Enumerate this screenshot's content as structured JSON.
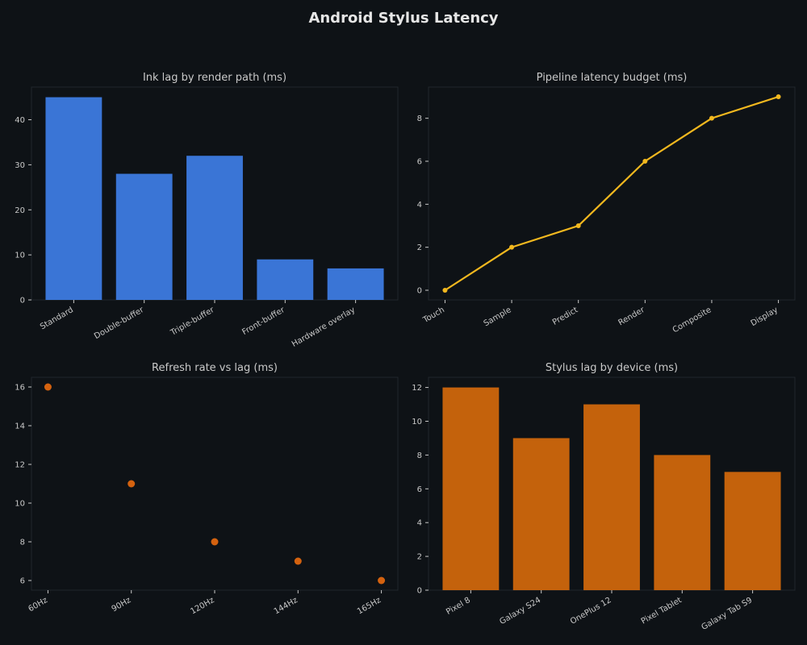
{
  "suptitle": "Android Stylus Latency",
  "chart_data": [
    {
      "type": "bar",
      "title": "Ink lag by render path (ms)",
      "categories": [
        "Standard",
        "Double-buffer",
        "Triple-buffer",
        "Front-buffer",
        "Hardware overlay"
      ],
      "values": [
        45,
        28,
        32,
        9,
        7
      ],
      "ylim": [
        0,
        47.25
      ],
      "yticks": [
        0,
        10,
        20,
        30,
        40
      ],
      "color": "#3a75d6",
      "grid": false
    },
    {
      "type": "line",
      "title": "Pipeline latency budget (ms)",
      "categories": [
        "Touch",
        "Sample",
        "Predict",
        "Render",
        "Composite",
        "Display"
      ],
      "values": [
        0,
        2,
        3,
        6,
        8,
        9
      ],
      "ylim": [
        -0.45,
        9.45
      ],
      "yticks": [
        0,
        2,
        4,
        6,
        8
      ],
      "color": "#f2b81f",
      "grid": false
    },
    {
      "type": "scatter",
      "title": "Refresh rate vs lag (ms)",
      "categories": [
        "60Hz",
        "90Hz",
        "120Hz",
        "144Hz",
        "165Hz"
      ],
      "values": [
        16,
        11,
        8,
        7,
        6
      ],
      "ylim": [
        5.5,
        16.5
      ],
      "yticks": [
        6,
        8,
        10,
        12,
        14,
        16
      ],
      "color": "#d4620f",
      "grid": false
    },
    {
      "type": "bar",
      "title": "Stylus lag by device (ms)",
      "categories": [
        "Pixel 8",
        "Galaxy S24",
        "OnePlus 12",
        "Pixel Tablet",
        "Galaxy Tab S9"
      ],
      "values": [
        12,
        9,
        11,
        8,
        7
      ],
      "ylim": [
        0,
        12.6
      ],
      "yticks": [
        0,
        2,
        4,
        6,
        8,
        10,
        12
      ],
      "color": "#c4620c",
      "grid": false
    }
  ]
}
